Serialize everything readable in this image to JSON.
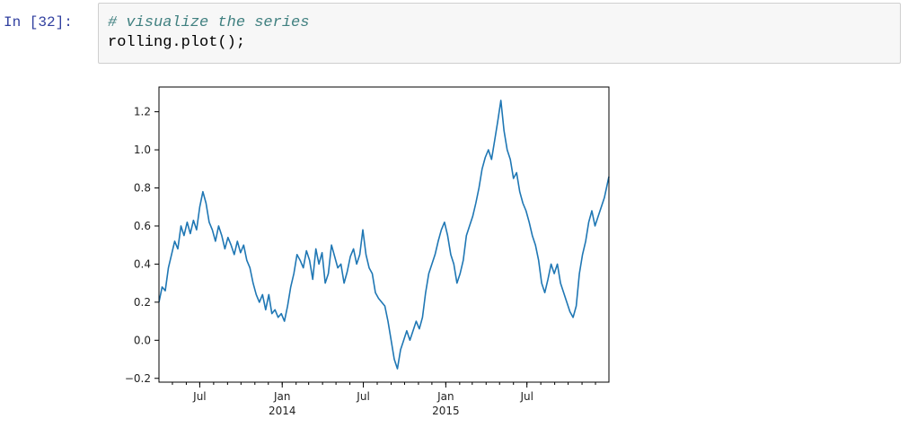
{
  "cell": {
    "prompt": "In [32]:",
    "code_lines": [
      {
        "kind": "comment",
        "text": "# visualize the series"
      },
      {
        "kind": "code",
        "text": "rolling.plot();"
      }
    ]
  },
  "chart_data": {
    "type": "line",
    "title": "",
    "xlabel": "",
    "ylabel": "",
    "grid": false,
    "legend": "none",
    "line_color": "#1f77b4",
    "xlim": [
      "2013-04-01",
      "2015-12-31"
    ],
    "ylim": [
      -0.22,
      1.33
    ],
    "yticks": [
      -0.2,
      0.0,
      0.2,
      0.4,
      0.6,
      0.8,
      1.0,
      1.2
    ],
    "ytick_labels": [
      "−0.2",
      "0.0",
      "0.2",
      "0.4",
      "0.6",
      "0.8",
      "1.0",
      "1.2"
    ],
    "xticks": [
      {
        "date": "2013-07-01",
        "label": "Jul",
        "sub": ""
      },
      {
        "date": "2014-01-01",
        "label": "Jan",
        "sub": "2014"
      },
      {
        "date": "2014-07-01",
        "label": "Jul",
        "sub": ""
      },
      {
        "date": "2015-01-01",
        "label": "Jan",
        "sub": "2015"
      },
      {
        "date": "2015-07-01",
        "label": "Jul",
        "sub": ""
      }
    ],
    "series": [
      {
        "points": [
          [
            "2013-04-01",
            0.2
          ],
          [
            "2013-04-08",
            0.28
          ],
          [
            "2013-04-15",
            0.26
          ],
          [
            "2013-04-22",
            0.38
          ],
          [
            "2013-04-29",
            0.45
          ],
          [
            "2013-05-06",
            0.52
          ],
          [
            "2013-05-13",
            0.48
          ],
          [
            "2013-05-20",
            0.6
          ],
          [
            "2013-05-27",
            0.55
          ],
          [
            "2013-06-03",
            0.62
          ],
          [
            "2013-06-10",
            0.56
          ],
          [
            "2013-06-17",
            0.63
          ],
          [
            "2013-06-24",
            0.58
          ],
          [
            "2013-07-01",
            0.7
          ],
          [
            "2013-07-08",
            0.78
          ],
          [
            "2013-07-15",
            0.72
          ],
          [
            "2013-07-22",
            0.62
          ],
          [
            "2013-07-29",
            0.58
          ],
          [
            "2013-08-05",
            0.52
          ],
          [
            "2013-08-12",
            0.6
          ],
          [
            "2013-08-19",
            0.55
          ],
          [
            "2013-08-26",
            0.48
          ],
          [
            "2013-09-02",
            0.54
          ],
          [
            "2013-09-09",
            0.5
          ],
          [
            "2013-09-16",
            0.45
          ],
          [
            "2013-09-23",
            0.52
          ],
          [
            "2013-09-30",
            0.46
          ],
          [
            "2013-10-07",
            0.5
          ],
          [
            "2013-10-14",
            0.42
          ],
          [
            "2013-10-21",
            0.38
          ],
          [
            "2013-10-28",
            0.3
          ],
          [
            "2013-11-04",
            0.24
          ],
          [
            "2013-11-11",
            0.2
          ],
          [
            "2013-11-18",
            0.24
          ],
          [
            "2013-11-25",
            0.16
          ],
          [
            "2013-12-02",
            0.24
          ],
          [
            "2013-12-09",
            0.14
          ],
          [
            "2013-12-16",
            0.16
          ],
          [
            "2013-12-23",
            0.12
          ],
          [
            "2013-12-30",
            0.14
          ],
          [
            "2014-01-06",
            0.1
          ],
          [
            "2014-01-13",
            0.18
          ],
          [
            "2014-01-20",
            0.28
          ],
          [
            "2014-01-27",
            0.35
          ],
          [
            "2014-02-03",
            0.45
          ],
          [
            "2014-02-10",
            0.42
          ],
          [
            "2014-02-17",
            0.38
          ],
          [
            "2014-02-24",
            0.47
          ],
          [
            "2014-03-03",
            0.42
          ],
          [
            "2014-03-10",
            0.32
          ],
          [
            "2014-03-17",
            0.48
          ],
          [
            "2014-03-24",
            0.4
          ],
          [
            "2014-03-31",
            0.46
          ],
          [
            "2014-04-07",
            0.3
          ],
          [
            "2014-04-14",
            0.35
          ],
          [
            "2014-04-21",
            0.5
          ],
          [
            "2014-04-28",
            0.44
          ],
          [
            "2014-05-05",
            0.38
          ],
          [
            "2014-05-12",
            0.4
          ],
          [
            "2014-05-19",
            0.3
          ],
          [
            "2014-05-26",
            0.36
          ],
          [
            "2014-06-02",
            0.44
          ],
          [
            "2014-06-09",
            0.48
          ],
          [
            "2014-06-16",
            0.4
          ],
          [
            "2014-06-23",
            0.45
          ],
          [
            "2014-06-30",
            0.58
          ],
          [
            "2014-07-07",
            0.45
          ],
          [
            "2014-07-14",
            0.38
          ],
          [
            "2014-07-21",
            0.35
          ],
          [
            "2014-07-28",
            0.25
          ],
          [
            "2014-08-04",
            0.22
          ],
          [
            "2014-08-11",
            0.2
          ],
          [
            "2014-08-18",
            0.18
          ],
          [
            "2014-08-25",
            0.1
          ],
          [
            "2014-09-01",
            0.0
          ],
          [
            "2014-09-08",
            -0.1
          ],
          [
            "2014-09-15",
            -0.15
          ],
          [
            "2014-09-22",
            -0.05
          ],
          [
            "2014-09-29",
            0.0
          ],
          [
            "2014-10-06",
            0.05
          ],
          [
            "2014-10-13",
            0.0
          ],
          [
            "2014-10-20",
            0.05
          ],
          [
            "2014-10-27",
            0.1
          ],
          [
            "2014-11-03",
            0.06
          ],
          [
            "2014-11-10",
            0.12
          ],
          [
            "2014-11-17",
            0.25
          ],
          [
            "2014-11-24",
            0.35
          ],
          [
            "2014-12-01",
            0.4
          ],
          [
            "2014-12-08",
            0.45
          ],
          [
            "2014-12-15",
            0.52
          ],
          [
            "2014-12-22",
            0.58
          ],
          [
            "2014-12-29",
            0.62
          ],
          [
            "2015-01-05",
            0.55
          ],
          [
            "2015-01-12",
            0.45
          ],
          [
            "2015-01-19",
            0.4
          ],
          [
            "2015-01-26",
            0.3
          ],
          [
            "2015-02-02",
            0.35
          ],
          [
            "2015-02-09",
            0.42
          ],
          [
            "2015-02-16",
            0.55
          ],
          [
            "2015-02-23",
            0.6
          ],
          [
            "2015-03-02",
            0.65
          ],
          [
            "2015-03-09",
            0.72
          ],
          [
            "2015-03-16",
            0.8
          ],
          [
            "2015-03-23",
            0.9
          ],
          [
            "2015-03-30",
            0.96
          ],
          [
            "2015-04-06",
            1.0
          ],
          [
            "2015-04-13",
            0.95
          ],
          [
            "2015-04-20",
            1.05
          ],
          [
            "2015-04-27",
            1.15
          ],
          [
            "2015-05-04",
            1.26
          ],
          [
            "2015-05-11",
            1.1
          ],
          [
            "2015-05-18",
            1.0
          ],
          [
            "2015-05-25",
            0.95
          ],
          [
            "2015-06-01",
            0.85
          ],
          [
            "2015-06-08",
            0.88
          ],
          [
            "2015-06-15",
            0.78
          ],
          [
            "2015-06-22",
            0.72
          ],
          [
            "2015-06-29",
            0.68
          ],
          [
            "2015-07-06",
            0.62
          ],
          [
            "2015-07-13",
            0.55
          ],
          [
            "2015-07-20",
            0.5
          ],
          [
            "2015-07-27",
            0.42
          ],
          [
            "2015-08-03",
            0.3
          ],
          [
            "2015-08-10",
            0.25
          ],
          [
            "2015-08-17",
            0.32
          ],
          [
            "2015-08-24",
            0.4
          ],
          [
            "2015-08-31",
            0.35
          ],
          [
            "2015-09-07",
            0.4
          ],
          [
            "2015-09-14",
            0.3
          ],
          [
            "2015-09-21",
            0.25
          ],
          [
            "2015-09-28",
            0.2
          ],
          [
            "2015-10-05",
            0.15
          ],
          [
            "2015-10-12",
            0.12
          ],
          [
            "2015-10-19",
            0.18
          ],
          [
            "2015-10-26",
            0.35
          ],
          [
            "2015-11-02",
            0.45
          ],
          [
            "2015-11-09",
            0.52
          ],
          [
            "2015-11-16",
            0.62
          ],
          [
            "2015-11-23",
            0.68
          ],
          [
            "2015-11-30",
            0.6
          ],
          [
            "2015-12-07",
            0.65
          ],
          [
            "2015-12-14",
            0.7
          ],
          [
            "2015-12-21",
            0.75
          ],
          [
            "2015-12-31",
            0.86
          ]
        ]
      }
    ]
  }
}
